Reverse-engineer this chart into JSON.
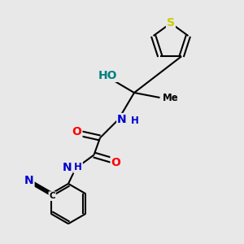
{
  "bg_color": "#e8e8e8",
  "atom_colors": {
    "C": "#000000",
    "N": "#0000cd",
    "O": "#ff0000",
    "S": "#cccc00",
    "H": "#000000",
    "teal": "#008080"
  },
  "bond_color": "#000000",
  "bond_width": 1.5,
  "font_size_atom": 10,
  "font_size_small": 8.5
}
